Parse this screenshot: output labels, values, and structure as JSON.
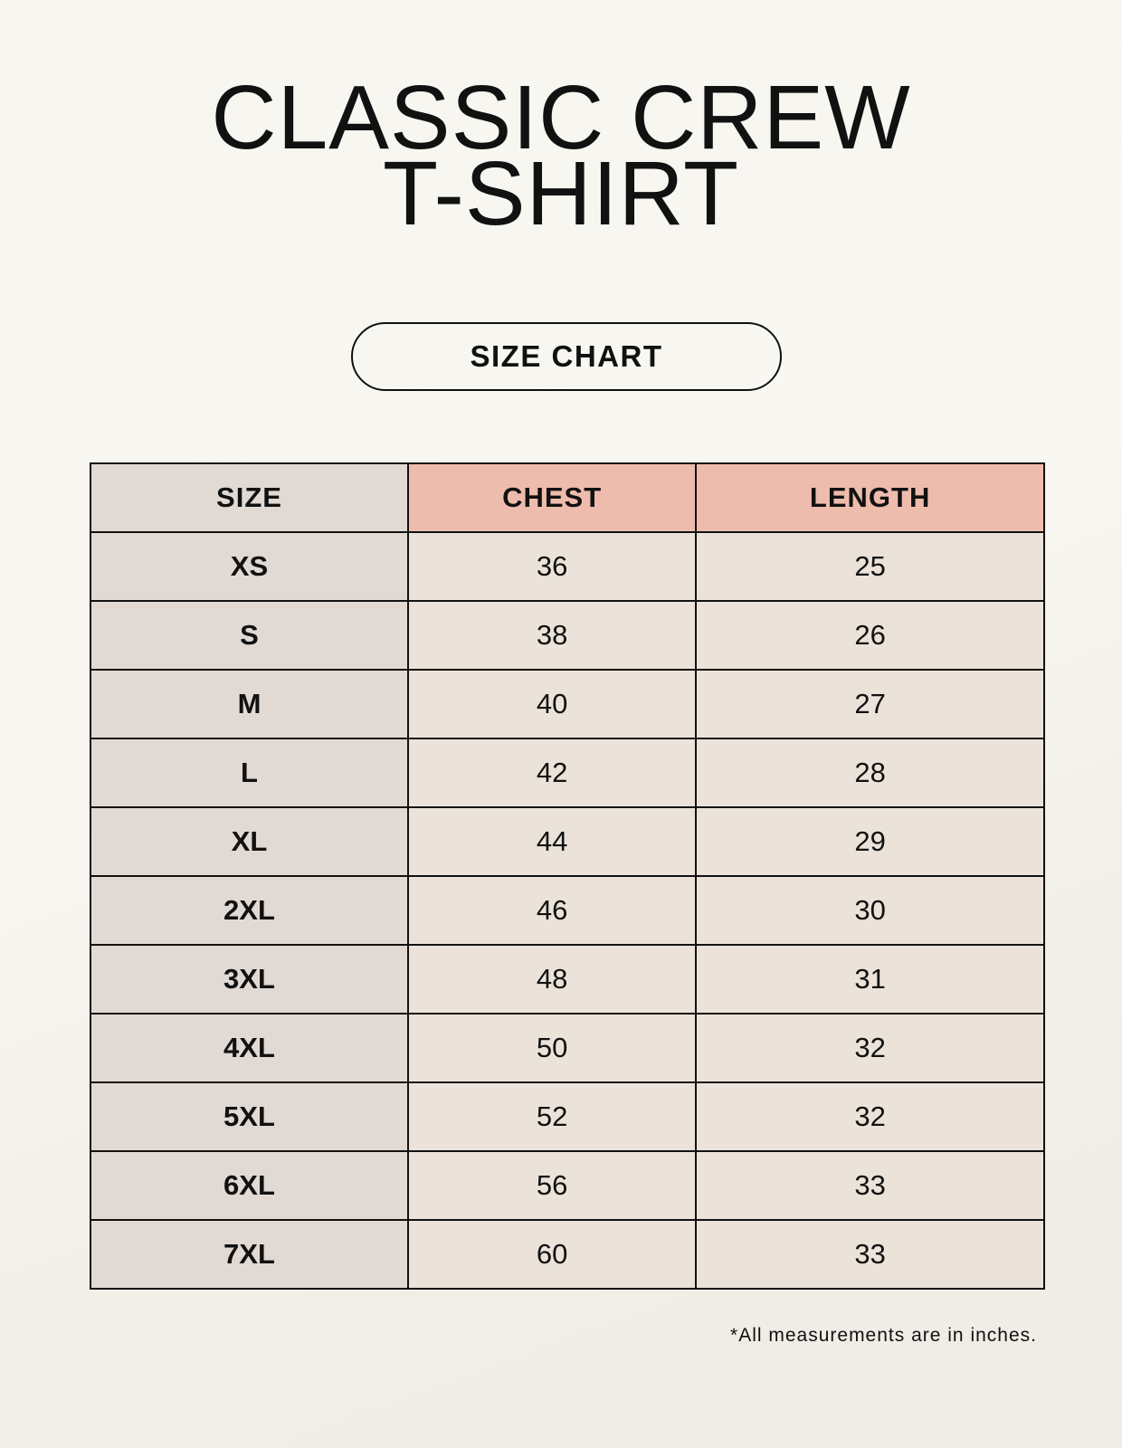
{
  "title": {
    "line1": "CLASSIC CREW",
    "line2": "T-SHIRT"
  },
  "badge": "SIZE CHART",
  "table": {
    "headers": [
      "SIZE",
      "CHEST",
      "LENGTH"
    ],
    "rows": [
      [
        "XS",
        "36",
        "25"
      ],
      [
        "S",
        "38",
        "26"
      ],
      [
        "M",
        "40",
        "27"
      ],
      [
        "L",
        "42",
        "28"
      ],
      [
        "XL",
        "44",
        "29"
      ],
      [
        "2XL",
        "46",
        "30"
      ],
      [
        "3XL",
        "48",
        "31"
      ],
      [
        "4XL",
        "50",
        "32"
      ],
      [
        "5XL",
        "52",
        "32"
      ],
      [
        "6XL",
        "56",
        "33"
      ],
      [
        "7XL",
        "60",
        "33"
      ]
    ]
  },
  "footnote": "*All measurements are in inches.",
  "colors": {
    "size_column": "#e1d9d3",
    "header_accent": "#eebcad",
    "value_cells": "#ebe3d9"
  }
}
